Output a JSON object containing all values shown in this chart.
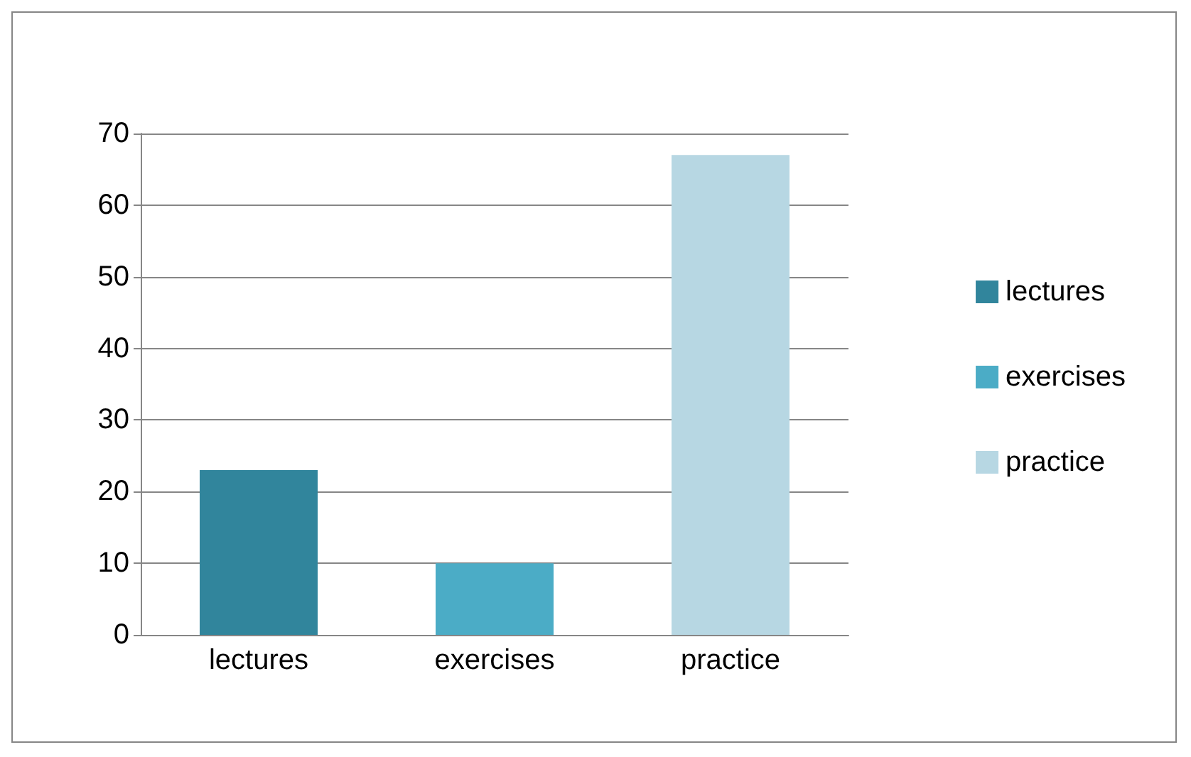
{
  "chart_data": {
    "type": "bar",
    "categories": [
      "lectures",
      "exercises",
      "practice"
    ],
    "series": [
      {
        "name": "lectures",
        "color": "#31859c",
        "values": [
          23,
          null,
          null
        ]
      },
      {
        "name": "exercises",
        "color": "#4bacc6",
        "values": [
          null,
          10,
          null
        ]
      },
      {
        "name": "practice",
        "color": "#b7d7e3",
        "values": [
          null,
          null,
          67
        ]
      }
    ],
    "ylim": [
      0,
      70
    ],
    "yticks": [
      0,
      10,
      20,
      30,
      40,
      50,
      60,
      70
    ],
    "grid": "y",
    "legend": "right"
  }
}
